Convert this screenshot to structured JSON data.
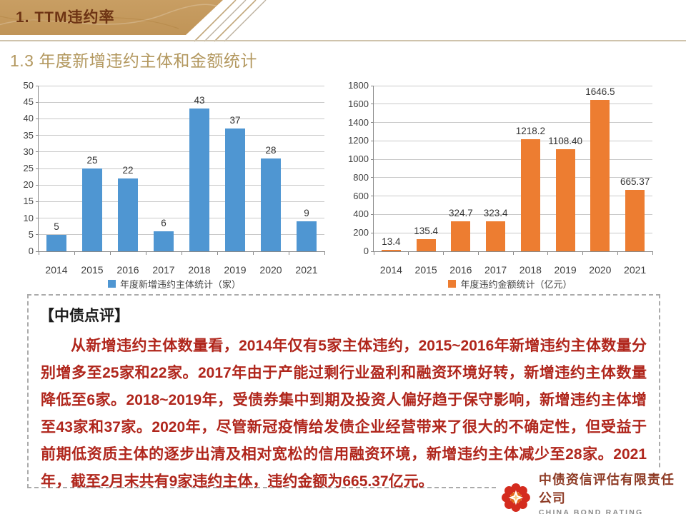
{
  "header": {
    "section_title": "1. TTM违约率",
    "page_title": "1.3 年度新增违约主体和金额统计"
  },
  "colors": {
    "banner_bg": "#c49a5c",
    "banner_text": "#6e3414",
    "title_gold": "#b3985f",
    "bar_blue": "#4f96d2",
    "bar_orange": "#ed7d31",
    "comment_red": "#b0261c",
    "logo_red": "#d42b1e"
  },
  "chart_data": [
    {
      "type": "bar",
      "categories": [
        "2014",
        "2015",
        "2016",
        "2017",
        "2018",
        "2019",
        "2020",
        "2021"
      ],
      "values": [
        5,
        25,
        22,
        6,
        43,
        37,
        28,
        9
      ],
      "value_labels": [
        "5",
        "25",
        "22",
        "6",
        "43",
        "37",
        "28",
        "9"
      ],
      "legend": "年度新增违约主体统计（家）",
      "bar_color": "#4f96d2",
      "ylim": [
        0,
        50
      ],
      "ytick_step": 5,
      "grid": true,
      "legend_position": "bottom"
    },
    {
      "type": "bar",
      "categories": [
        "2014",
        "2015",
        "2016",
        "2017",
        "2018",
        "2019",
        "2020",
        "2021"
      ],
      "values": [
        13.4,
        135.4,
        324.7,
        323.4,
        1218.2,
        1108.4,
        1646.5,
        665.37
      ],
      "value_labels": [
        "13.4",
        "135.4",
        "324.7",
        "323.4",
        "1218.2",
        "1108.40",
        "1646.5",
        "665.37"
      ],
      "legend": "年度违约金额统计（亿元）",
      "bar_color": "#ed7d31",
      "ylim": [
        0,
        1800
      ],
      "ytick_step": 200,
      "grid": true,
      "legend_position": "bottom"
    }
  ],
  "comment": {
    "title": "【中债点评】",
    "body": "从新增违约主体数量看，2014年仅有5家主体违约，2015~2016年新增违约主体数量分别增多至25家和22家。2017年由于产能过剩行业盈利和融资环境好转，新增违约主体数量降低至6家。2018~2019年，受债券集中到期及投资人偏好趋于保守影响，新增违约主体增至43家和37家。2020年，尽管新冠疫情给发债企业经营带来了很大的不确定性，但受益于前期低资质主体的逐步出清及相对宽松的信用融资环境，新增违约主体减少至28家。2021年，截至2月末共有9家违约主体，违约金额为665.37亿元。"
  },
  "footer": {
    "company_cn": "中债资信评估有限责任公司",
    "company_en": "CHINA BOND RATING CO.,LTD"
  }
}
